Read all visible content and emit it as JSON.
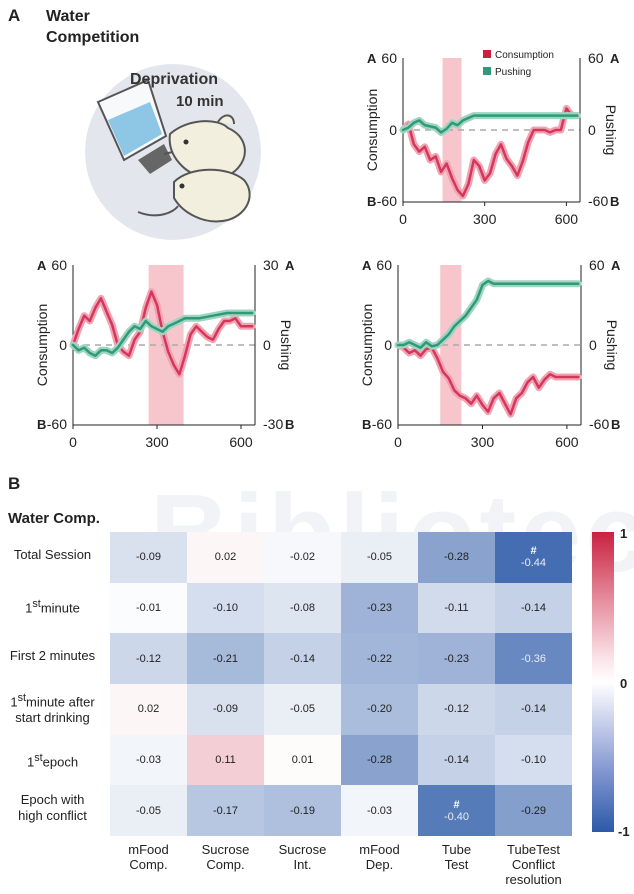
{
  "panel_a": {
    "letter": "A",
    "title_line1": "Water",
    "title_line2": "Competition",
    "illustration": {
      "deprivation": "Deprivation",
      "duration": "10 min",
      "icon": "rats-drinking-illustration"
    },
    "plots": [
      {
        "id": "top-right",
        "yleft": "Consumption",
        "yright": "Pushing",
        "left_top": "60",
        "left_bottom": "-60",
        "left_mid": "0",
        "right_top": "60",
        "right_bottom": "-60",
        "right_mid": "0",
        "tag_top": "A",
        "tag_bottom": "B",
        "xticks": [
          "0",
          "300",
          "600"
        ],
        "legend": [
          "Consumption",
          "Pushing"
        ]
      },
      {
        "id": "bottom-left",
        "yleft": "Consumption",
        "yright": "Pushing",
        "left_top": "60",
        "left_bottom": "-60",
        "left_mid": "0",
        "right_top": "30",
        "right_bottom": "-30",
        "right_mid": "0",
        "tag_top": "A",
        "tag_bottom": "B",
        "xticks": [
          "0",
          "300",
          "600"
        ]
      },
      {
        "id": "bottom-right",
        "yleft": "Consumption",
        "yright": "Pushing",
        "left_top": "60",
        "left_bottom": "-60",
        "left_mid": "0",
        "right_top": "60",
        "right_bottom": "-60",
        "right_mid": "0",
        "tag_top": "A",
        "tag_bottom": "B",
        "xticks": [
          "0",
          "300",
          "600"
        ]
      }
    ]
  },
  "panel_b": {
    "letter": "B",
    "subtitle": "Water Comp.",
    "rows": [
      {
        "label": "Total Session"
      },
      {
        "label_main": "1",
        "label_sup": "st",
        "label_rest": "minute"
      },
      {
        "label": "First 2 minutes"
      },
      {
        "label_main": "1",
        "label_sup": "st",
        "label_rest": "minute after",
        "label_line2": "start drinking"
      },
      {
        "label_main": "1",
        "label_sup": "st",
        "label_rest": "epoch"
      },
      {
        "label": "Epoch with",
        "label_line2": "high conflict"
      }
    ],
    "columns": [
      [
        "mFood",
        "Comp."
      ],
      [
        "Sucrose",
        "Comp."
      ],
      [
        "Sucrose",
        "Int."
      ],
      [
        "mFood",
        "Dep."
      ],
      [
        "Tube",
        "Test"
      ],
      [
        "TubeTest",
        "Conflict",
        "resolution"
      ]
    ],
    "colorbar": {
      "max": "1",
      "mid": "0",
      "min": "-1"
    }
  },
  "chart_data": [
    {
      "type": "line",
      "title": "",
      "xlabel": "",
      "ylabel": "Consumption",
      "y2label": "Pushing",
      "xlim": [
        0,
        650
      ],
      "ylim": [
        -60,
        60
      ],
      "y2lim": [
        -60,
        60
      ],
      "shaded_x": [
        145,
        215
      ],
      "series": [
        {
          "name": "Consumption",
          "color": "#d6365a",
          "axis": "left",
          "x": [
            0,
            20,
            40,
            60,
            80,
            100,
            120,
            140,
            160,
            180,
            200,
            220,
            240,
            260,
            280,
            300,
            320,
            340,
            360,
            380,
            400,
            420,
            440,
            460,
            480,
            500,
            520,
            540,
            560,
            580,
            600,
            620,
            640
          ],
          "y": [
            0,
            5,
            -12,
            -18,
            -14,
            -25,
            -22,
            -35,
            -28,
            -40,
            -50,
            -55,
            -45,
            -25,
            -30,
            -42,
            -36,
            -20,
            -12,
            -24,
            -30,
            -38,
            -26,
            -10,
            0,
            0,
            0,
            -2,
            0,
            0,
            18,
            12,
            12
          ]
        },
        {
          "name": "Pushing",
          "color": "#2f9a7a",
          "axis": "right",
          "x": [
            0,
            20,
            40,
            60,
            80,
            100,
            120,
            140,
            160,
            180,
            200,
            220,
            240,
            260,
            280,
            300,
            400,
            500,
            640
          ],
          "y": [
            0,
            2,
            6,
            8,
            4,
            3,
            2,
            -2,
            1,
            6,
            4,
            8,
            10,
            12,
            12,
            12,
            12,
            12,
            12
          ]
        }
      ]
    },
    {
      "type": "line",
      "title": "",
      "xlabel": "",
      "ylabel": "Consumption",
      "y2label": "Pushing",
      "xlim": [
        0,
        650
      ],
      "ylim": [
        -60,
        60
      ],
      "y2lim": [
        -30,
        30
      ],
      "shaded_x": [
        270,
        395
      ],
      "series": [
        {
          "name": "Consumption",
          "color": "#d6365a",
          "axis": "left",
          "x": [
            0,
            20,
            40,
            60,
            80,
            100,
            120,
            140,
            160,
            180,
            200,
            220,
            240,
            260,
            280,
            300,
            320,
            340,
            360,
            380,
            400,
            420,
            440,
            460,
            480,
            500,
            520,
            540,
            560,
            580,
            600,
            620,
            640
          ],
          "y": [
            0,
            12,
            22,
            18,
            28,
            35,
            25,
            15,
            0,
            -5,
            -8,
            4,
            10,
            28,
            40,
            30,
            10,
            -5,
            -15,
            -22,
            -8,
            8,
            14,
            10,
            6,
            4,
            12,
            18,
            18,
            20,
            14,
            14,
            14
          ]
        },
        {
          "name": "Pushing",
          "color": "#2f9a7a",
          "axis": "right",
          "x": [
            0,
            20,
            40,
            60,
            80,
            100,
            120,
            140,
            160,
            180,
            200,
            220,
            240,
            260,
            280,
            300,
            320,
            340,
            360,
            380,
            400,
            450,
            500,
            550,
            600,
            640
          ],
          "y": [
            0,
            -2,
            -1,
            -3,
            -4,
            -2,
            -2,
            -3,
            -1,
            2,
            5,
            7,
            6,
            9,
            7,
            6,
            5,
            7,
            8,
            9,
            10,
            10,
            11,
            12,
            12,
            12
          ]
        }
      ]
    },
    {
      "type": "line",
      "title": "",
      "xlabel": "",
      "ylabel": "Consumption",
      "y2label": "Pushing",
      "xlim": [
        0,
        650
      ],
      "ylim": [
        -60,
        60
      ],
      "y2lim": [
        -60,
        60
      ],
      "shaded_x": [
        150,
        225
      ],
      "series": [
        {
          "name": "Consumption",
          "color": "#d6365a",
          "axis": "left",
          "x": [
            0,
            20,
            40,
            60,
            80,
            100,
            120,
            140,
            160,
            180,
            200,
            220,
            240,
            260,
            280,
            300,
            320,
            340,
            360,
            380,
            400,
            420,
            440,
            460,
            480,
            500,
            520,
            540,
            560,
            580,
            600,
            620,
            640
          ],
          "y": [
            0,
            -2,
            -6,
            -4,
            -8,
            -3,
            -2,
            -10,
            -20,
            -25,
            -34,
            -38,
            -40,
            -44,
            -38,
            -45,
            -50,
            -40,
            -36,
            -44,
            -52,
            -40,
            -36,
            -28,
            -24,
            -32,
            -26,
            -22,
            -24,
            -24,
            -24,
            -24,
            -24
          ]
        },
        {
          "name": "Pushing",
          "color": "#2f9a7a",
          "axis": "right",
          "x": [
            0,
            20,
            40,
            60,
            80,
            100,
            120,
            140,
            160,
            180,
            200,
            220,
            240,
            260,
            280,
            300,
            320,
            340,
            400,
            500,
            600,
            640
          ],
          "y": [
            0,
            0,
            2,
            0,
            -2,
            2,
            -1,
            0,
            4,
            8,
            14,
            18,
            22,
            28,
            34,
            45,
            48,
            46,
            46,
            46,
            46,
            46
          ]
        }
      ]
    },
    {
      "type": "heatmap",
      "title": "Water Comp.",
      "rows": [
        "Total Session",
        "1st minute",
        "First 2 minutes",
        "1st minute after start drinking",
        "1st epoch",
        "Epoch with high conflict"
      ],
      "columns": [
        "mFood Comp.",
        "Sucrose Comp.",
        "Sucrose Int.",
        "mFood Dep.",
        "Tube Test",
        "TubeTest Conflict resolution"
      ],
      "values": [
        [
          -0.09,
          0.02,
          -0.02,
          -0.05,
          -0.28,
          -0.44
        ],
        [
          -0.01,
          -0.1,
          -0.08,
          -0.23,
          -0.11,
          -0.14
        ],
        [
          -0.12,
          -0.21,
          -0.14,
          -0.22,
          -0.23,
          -0.36
        ],
        [
          0.02,
          -0.09,
          -0.05,
          -0.2,
          -0.12,
          -0.14
        ],
        [
          -0.03,
          0.11,
          0.01,
          -0.28,
          -0.14,
          -0.1
        ],
        [
          -0.05,
          -0.17,
          -0.19,
          -0.03,
          -0.4,
          -0.29
        ]
      ],
      "markers": [
        {
          "row": 0,
          "col": 5,
          "symbol": "#"
        },
        {
          "row": 5,
          "col": 4,
          "symbol": "#"
        }
      ],
      "colorbar": {
        "min": -1,
        "max": 1,
        "low_color": "#2c5aa8",
        "mid_color": "#ffffff",
        "high_color": "#c8213f"
      }
    }
  ]
}
